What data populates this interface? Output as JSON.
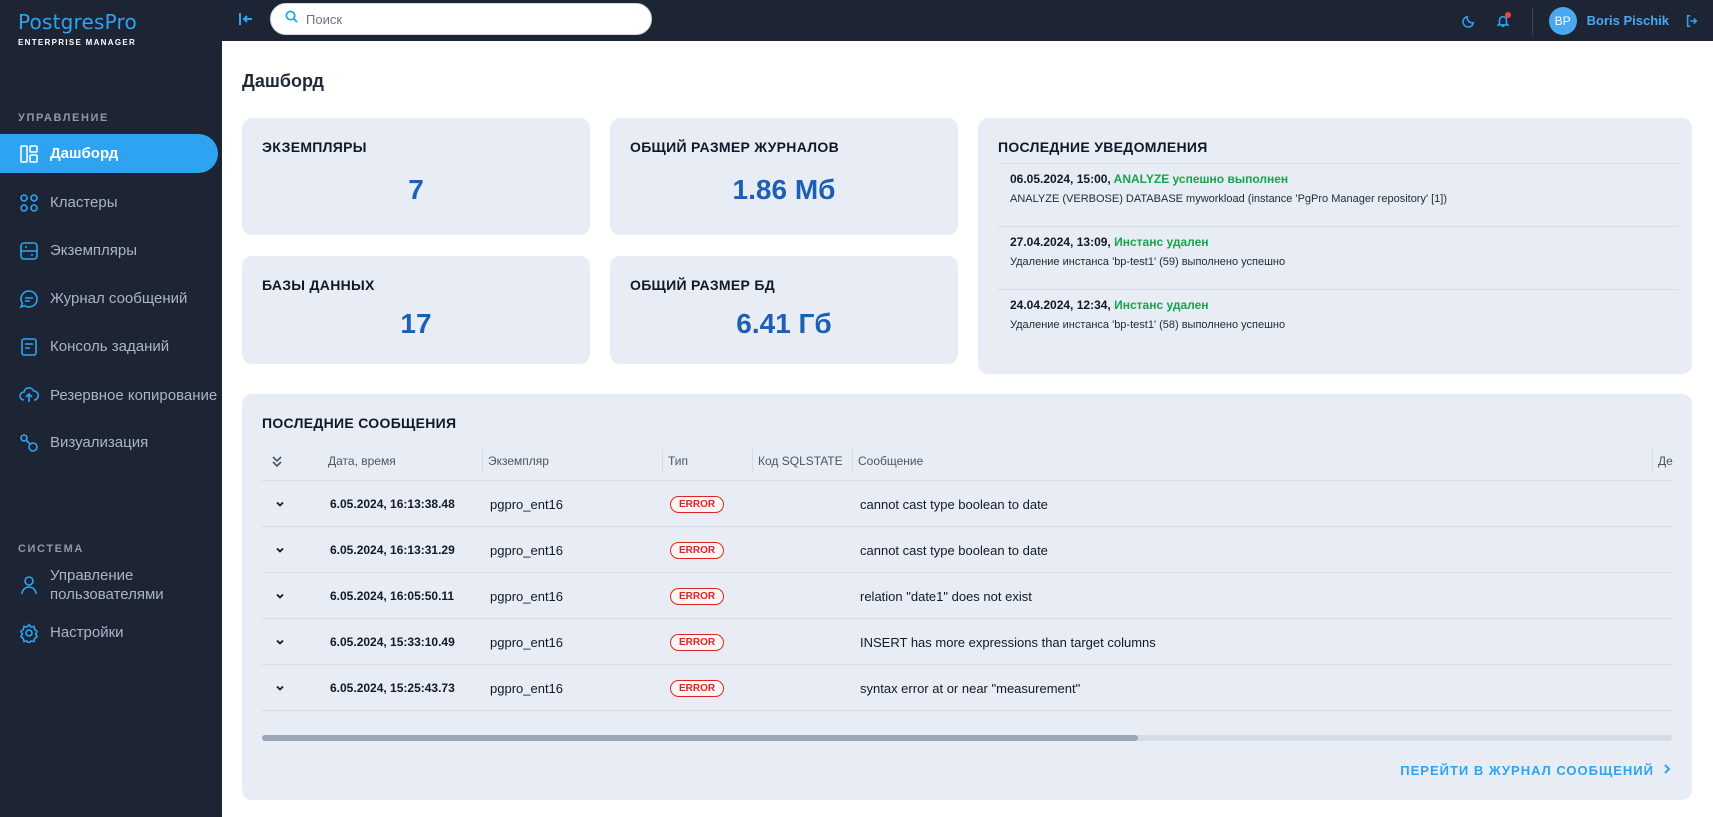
{
  "app": {
    "logo": "PostgresPro",
    "logo_sub": "ENTERPRISE MANAGER"
  },
  "sidebar": {
    "section_manage": "УПРАВЛЕНИЕ",
    "section_system": "СИСТЕМА",
    "items": [
      {
        "label": "Дашборд",
        "icon": "dashboard-icon",
        "active": true
      },
      {
        "label": "Кластеры",
        "icon": "clusters-icon"
      },
      {
        "label": "Экземпляры",
        "icon": "instances-icon"
      },
      {
        "label": "Журнал сообщений",
        "icon": "message-log-icon"
      },
      {
        "label": "Консоль заданий",
        "icon": "task-console-icon"
      },
      {
        "label": "Резервное копирование",
        "icon": "backup-icon"
      },
      {
        "label": "Визуализация",
        "icon": "visualization-icon"
      }
    ],
    "system_items": [
      {
        "label": "Управление пользователями",
        "icon": "user-icon"
      },
      {
        "label": "Настройки",
        "icon": "gear-icon"
      }
    ]
  },
  "topbar": {
    "search_placeholder": "Поиск",
    "avatar_initials": "BP",
    "username": "Boris Pischik"
  },
  "page": {
    "title": "Дашборд"
  },
  "stats": {
    "instances_title": "ЭКЗЕМПЛЯРЫ",
    "instances_value": "7",
    "logs_size_title": "ОБЩИЙ РАЗМЕР ЖУРНАЛОВ",
    "logs_size_value": "1.86 Мб",
    "databases_title": "БАЗЫ ДАННЫХ",
    "databases_value": "17",
    "db_size_title": "ОБЩИЙ РАЗМЕР БД",
    "db_size_value": "6.41 Гб"
  },
  "notifications": {
    "title": "ПОСЛЕДНИЕ УВЕДОМЛЕНИЯ",
    "items": [
      {
        "datetime": "06.05.2024, 15:00,",
        "status": "ANALYZE успешно выполнен",
        "text": "ANALYZE (VERBOSE) DATABASE myworkload (instance 'PgPro Manager repository' [1])"
      },
      {
        "datetime": "27.04.2024, 13:09,",
        "status": "Инстанс удален",
        "text": "Удаление инстанса 'bp-test1' (59) выполнено успешно"
      },
      {
        "datetime": "24.04.2024, 12:34,",
        "status": "Инстанс удален",
        "text": "Удаление инстанса 'bp-test1' (58) выполнено успешно"
      }
    ]
  },
  "messages": {
    "title": "ПОСЛЕДНИЕ СООБЩЕНИЯ",
    "columns": [
      "Дата, время",
      "Экземпляр",
      "Тип",
      "Код SQLSTATE",
      "Сообщение",
      "Де"
    ],
    "rows": [
      {
        "datetime": "6.05.2024, 16:13:38.48",
        "instance": "pgpro_ent16",
        "type": "ERROR",
        "sqlstate": "",
        "message": "cannot cast type boolean to date"
      },
      {
        "datetime": "6.05.2024, 16:13:31.29",
        "instance": "pgpro_ent16",
        "type": "ERROR",
        "sqlstate": "",
        "message": "cannot cast type boolean to date"
      },
      {
        "datetime": "6.05.2024, 16:05:50.11",
        "instance": "pgpro_ent16",
        "type": "ERROR",
        "sqlstate": "",
        "message": "relation \"date1\" does not exist"
      },
      {
        "datetime": "6.05.2024, 15:33:10.49",
        "instance": "pgpro_ent16",
        "type": "ERROR",
        "sqlstate": "",
        "message": "INSERT has more expressions than target columns"
      },
      {
        "datetime": "6.05.2024, 15:25:43.73",
        "instance": "pgpro_ent16",
        "type": "ERROR",
        "sqlstate": "",
        "message": "syntax error at or near \"measurement\""
      }
    ],
    "goto_link": "ПЕРЕЙТИ В ЖУРНАЛ СООБЩЕНИЙ"
  },
  "colors": {
    "sidebar_bg": "#1d2433",
    "accent": "#2ea3f2",
    "card_bg": "#e8edf5",
    "value_blue": "#1d5fb5",
    "success": "#16a34a",
    "error": "#dc2626"
  }
}
